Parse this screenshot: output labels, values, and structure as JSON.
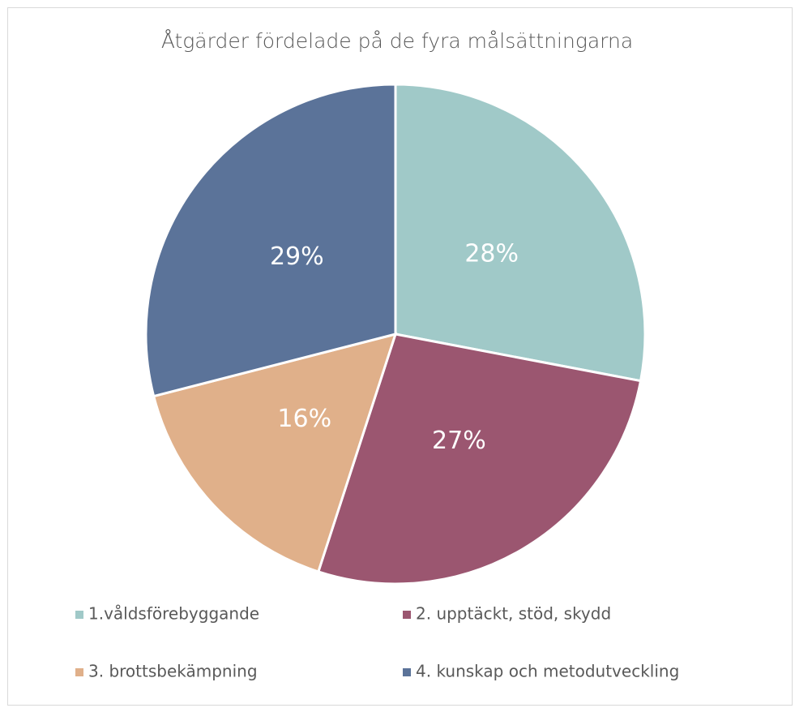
{
  "chart_data": {
    "type": "pie",
    "title": "Åtgärder fördelade på de fyra målsättningarna",
    "categories": [
      "1.våldsförebyggande",
      "2. upptäckt, stöd, skydd",
      "3. brottsbekämpning",
      "4. kunskap och metodutveckling"
    ],
    "values": [
      28,
      27,
      16,
      29
    ],
    "value_labels": [
      "28%",
      "27%",
      "16%",
      "29%"
    ],
    "colors": [
      "#a0c9c8",
      "#9b5670",
      "#e0b08a",
      "#5b7399"
    ],
    "legend": "bottom"
  }
}
